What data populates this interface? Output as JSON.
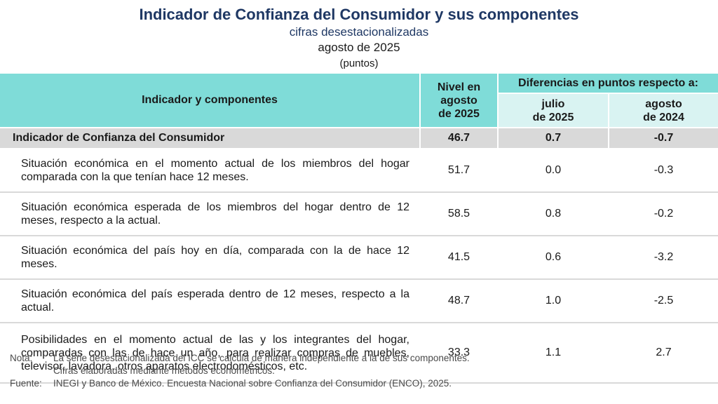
{
  "header": {
    "title": "Indicador de Confianza del Consumidor y sus componentes",
    "subtitle": "cifras desestacionalizadas",
    "date": "agosto de 2025",
    "units": "(puntos)"
  },
  "table": {
    "col_indicator": "Indicador y componentes",
    "col_level": "Nivel en agosto de 2025",
    "col_level_lines": [
      "Nivel en",
      "agosto",
      "de 2025"
    ],
    "col_diff": "Diferencias en puntos respecto a:",
    "col_jul_lines": [
      "julio",
      "de 2025"
    ],
    "col_ago_lines": [
      "agosto",
      "de 2024"
    ],
    "icc_row": {
      "name": "Indicador de Confianza del Consumidor",
      "level": "46.7",
      "d_jul": "0.7",
      "d_ago": "-0.7"
    },
    "rows": [
      {
        "name": "Situación económica en el momento actual de los miembros del hogar comparada con la que tenían hace 12 meses.",
        "level": "51.7",
        "d_jul": "0.0",
        "d_ago": "-0.3"
      },
      {
        "name": "Situación económica esperada de los miembros del hogar dentro de 12 meses, respecto a la actual.",
        "level": "58.5",
        "d_jul": "0.8",
        "d_ago": "-0.2"
      },
      {
        "name": "Situación económica del país hoy en día, comparada con la de hace 12 meses.",
        "level": "41.5",
        "d_jul": "0.6",
        "d_ago": "-3.2"
      },
      {
        "name": "Situación económica del país esperada dentro de 12 meses, respecto a la actual.",
        "level": "48.7",
        "d_jul": "1.0",
        "d_ago": "-2.5"
      },
      {
        "name": "Posibilidades en el momento actual de las y los integrantes del hogar, comparadas con las de hace un año, para realizar compras de muebles, televisor, lavadora, otros aparatos electrodomésticos, etc.",
        "level": "33.3",
        "d_jul": "1.1",
        "d_ago": "2.7"
      }
    ]
  },
  "notes": {
    "note_label": "Nota:",
    "note_line1": "La serie desestacionalizada del ICC se calcula de manera independiente a la de sus componentes.",
    "note_line2": "Cifras elaboradas mediante métodos econométricos.",
    "source_label": "Fuente:",
    "source_text": "INEGI y Banco de México. Encuesta Nacional sobre Confianza del Consumidor (ENCO), 2025."
  }
}
